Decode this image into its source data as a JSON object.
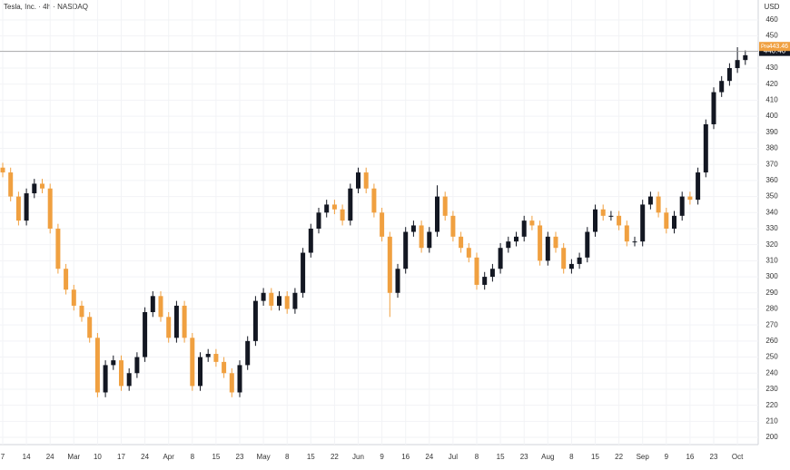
{
  "chart_data": {
    "type": "candlestick",
    "title": "Tesla, Inc. · 4h · NASDAQ",
    "y_axis_label": "USD",
    "categories": [
      "7",
      null,
      null,
      "14",
      null,
      null,
      "24",
      null,
      null,
      "Mar",
      null,
      null,
      "10",
      null,
      null,
      "17",
      null,
      null,
      "24",
      null,
      null,
      "Apr",
      null,
      null,
      "8",
      null,
      null,
      "15",
      null,
      null,
      "23",
      null,
      null,
      "May",
      null,
      null,
      "8",
      null,
      null,
      "15",
      null,
      null,
      "22",
      null,
      null,
      "Jun",
      null,
      null,
      "9",
      null,
      null,
      "16",
      null,
      null,
      "24",
      null,
      null,
      "Jul",
      null,
      null,
      "8",
      null,
      null,
      "15",
      null,
      null,
      "23",
      null,
      null,
      "Aug",
      null,
      null,
      "8",
      null,
      null,
      "15",
      null,
      null,
      "22",
      null,
      null,
      "Sep",
      null,
      null,
      "9",
      null,
      null,
      "16",
      null,
      null,
      "23",
      null,
      null,
      "Oct",
      null
    ],
    "open": [
      368,
      365,
      350,
      335,
      352,
      358,
      355,
      330,
      305,
      292,
      282,
      275,
      262,
      228,
      245,
      248,
      232,
      240,
      250,
      278,
      288,
      275,
      262,
      282,
      262,
      232,
      250,
      252,
      247,
      240,
      228,
      245,
      260,
      285,
      290,
      282,
      288,
      280,
      290,
      315,
      330,
      340,
      345,
      342,
      335,
      355,
      365,
      355,
      340,
      325,
      290,
      305,
      328,
      332,
      318,
      328,
      350,
      338,
      325,
      318,
      312,
      295,
      300,
      305,
      318,
      322,
      325,
      335,
      332,
      310,
      325,
      318,
      305,
      308,
      312,
      328,
      342,
      338,
      338,
      332,
      322,
      322,
      345,
      350,
      340,
      330,
      338,
      350,
      348,
      365,
      395,
      415,
      422,
      430,
      435
    ],
    "high": [
      371,
      368,
      353,
      355,
      361,
      361,
      358,
      333,
      308,
      295,
      285,
      278,
      265,
      248,
      251,
      251,
      243,
      253,
      281,
      291,
      291,
      278,
      285,
      285,
      265,
      253,
      255,
      255,
      250,
      243,
      248,
      263,
      288,
      293,
      293,
      291,
      291,
      293,
      318,
      333,
      343,
      348,
      348,
      345,
      358,
      368,
      368,
      358,
      343,
      328,
      308,
      331,
      335,
      335,
      331,
      357,
      353,
      341,
      328,
      321,
      315,
      303,
      308,
      321,
      325,
      328,
      338,
      338,
      335,
      328,
      328,
      321,
      311,
      315,
      331,
      345,
      345,
      341,
      341,
      335,
      325,
      348,
      353,
      353,
      343,
      341,
      353,
      353,
      368,
      398,
      418,
      425,
      433,
      443,
      441
    ],
    "low": [
      362,
      347,
      332,
      332,
      349,
      352,
      327,
      302,
      289,
      279,
      272,
      259,
      225,
      225,
      242,
      229,
      229,
      237,
      247,
      275,
      272,
      259,
      259,
      259,
      229,
      229,
      247,
      244,
      237,
      225,
      225,
      242,
      257,
      282,
      279,
      279,
      277,
      277,
      287,
      312,
      327,
      337,
      339,
      332,
      332,
      352,
      352,
      337,
      322,
      275,
      287,
      302,
      325,
      315,
      315,
      325,
      335,
      322,
      315,
      309,
      292,
      292,
      297,
      302,
      315,
      319,
      322,
      329,
      307,
      307,
      315,
      302,
      302,
      305,
      309,
      325,
      335,
      335,
      329,
      319,
      319,
      319,
      342,
      337,
      327,
      327,
      335,
      345,
      345,
      362,
      392,
      412,
      419,
      427,
      432
    ],
    "close": [
      365,
      350,
      335,
      352,
      358,
      355,
      330,
      305,
      292,
      282,
      275,
      262,
      228,
      245,
      248,
      232,
      240,
      250,
      278,
      288,
      275,
      262,
      282,
      262,
      232,
      250,
      252,
      247,
      240,
      228,
      245,
      260,
      285,
      290,
      282,
      288,
      280,
      290,
      315,
      330,
      340,
      345,
      342,
      335,
      355,
      365,
      355,
      340,
      325,
      290,
      305,
      328,
      332,
      318,
      328,
      350,
      338,
      325,
      318,
      312,
      295,
      300,
      305,
      318,
      322,
      325,
      335,
      332,
      310,
      325,
      318,
      305,
      308,
      312,
      328,
      342,
      338,
      338,
      332,
      322,
      322,
      345,
      350,
      340,
      330,
      338,
      350,
      348,
      365,
      395,
      415,
      422,
      430,
      435,
      438
    ],
    "up_color": "#131722",
    "down_color": "#f0a040",
    "ylim": [
      195.5,
      472.4
    ],
    "yticks": [
      200,
      210,
      220,
      230,
      240,
      250,
      260,
      270,
      280,
      290,
      300,
      310,
      320,
      330,
      340,
      350,
      360,
      370,
      380,
      390,
      400,
      410,
      420,
      430,
      440,
      450,
      460
    ],
    "grid": true,
    "price_line": {
      "value": 440.4,
      "label": "440.40"
    },
    "pre_market": {
      "label": "Pre",
      "value": 443.46
    }
  }
}
